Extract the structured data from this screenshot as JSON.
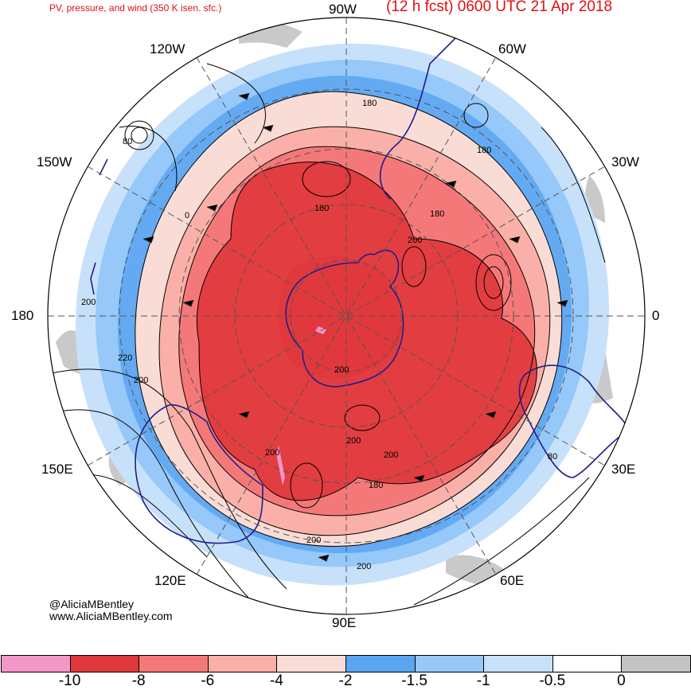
{
  "header": {
    "left_title": "PV, pressure, and wind (350 K isen. sfc.)",
    "right_title": "(12 h fcst) 0600 UTC 21 Apr 2018"
  },
  "longitude_labels": {
    "top": "90W",
    "upper_left": "120W",
    "upper_right": "60W",
    "left_upper": "150W",
    "right_upper": "30W",
    "left": "180",
    "right": "0",
    "left_lower": "150E",
    "right_lower": "30E",
    "lower_left": "120E",
    "lower_right": "60E",
    "bottom": "90E"
  },
  "contour_labels": [
    "180",
    "180",
    "180",
    "200",
    "200",
    "200",
    "200",
    "200",
    "200",
    "200",
    "200",
    "220",
    "80",
    "80",
    "180",
    "180",
    "0",
    "200"
  ],
  "credit": {
    "handle": "@AliciaMBentley",
    "website": "www.AliciaMBentley.com"
  },
  "colorbar": {
    "colors": [
      "#f596c8",
      "#e0383c",
      "#f57878",
      "#fab0a8",
      "#fadcd6",
      "#5aa5f0",
      "#96c8fa",
      "#c8e1fa",
      "#ffffff",
      "#c3c3c3"
    ],
    "tick_labels": [
      "-10",
      "-8",
      "-6",
      "-4",
      "-2",
      "-1.5",
      "-1",
      "-0.5",
      "0"
    ]
  },
  "map_colors": {
    "coast": "#1e1e8c",
    "contour": "#000000",
    "grid": "#555555"
  }
}
